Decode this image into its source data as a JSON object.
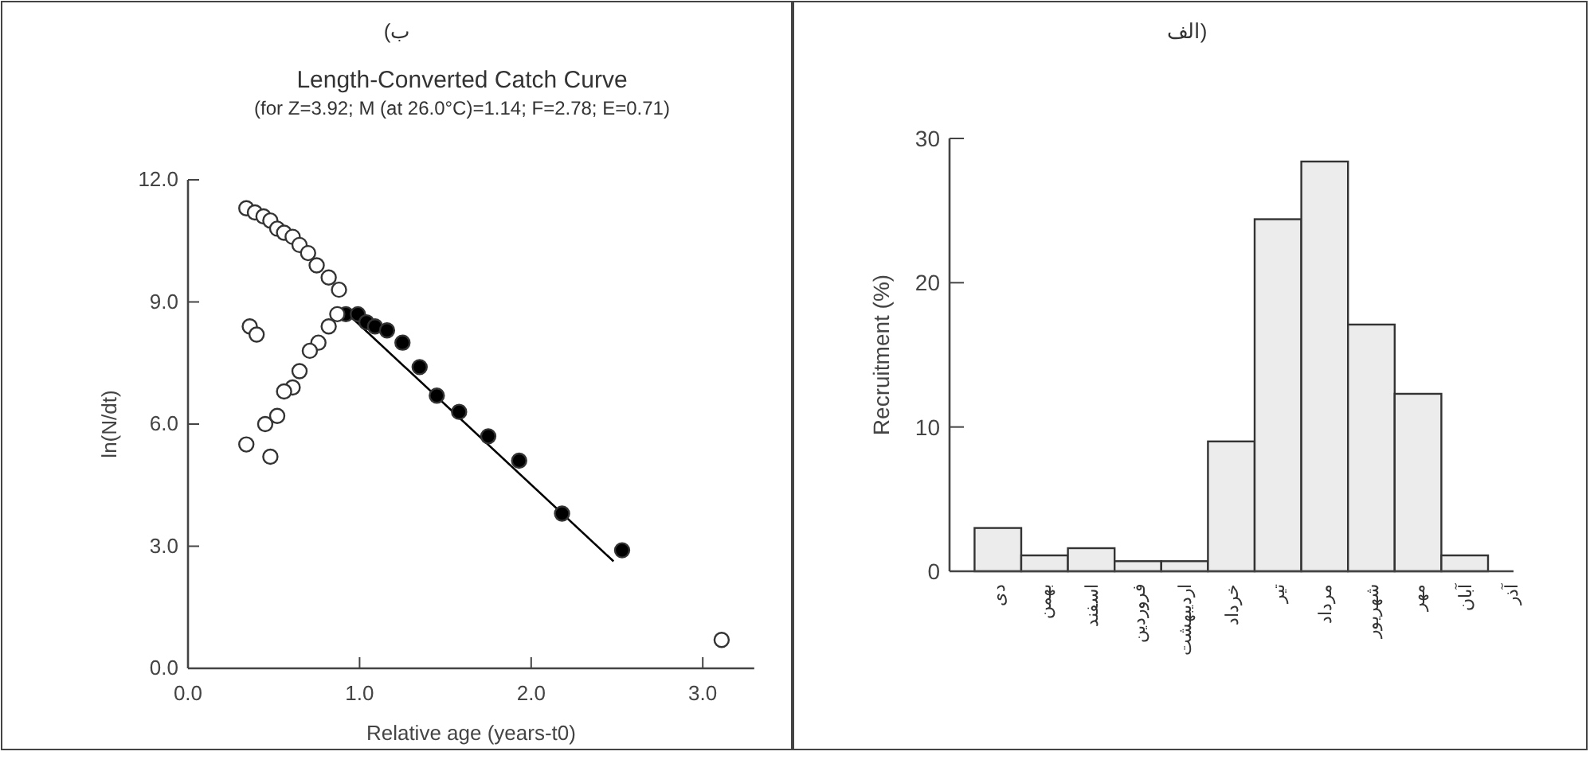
{
  "chart_data": [
    {
      "type": "scatter",
      "title": "Length-Converted Catch Curve",
      "subtitle": "(for Z=3.92; M (at 26.0°C)=1.14; F=2.78; E=0.71)",
      "xlabel": "Relative age (years-t0)",
      "ylabel": "ln(N/dt)",
      "annotations": [
        "ب)"
      ],
      "xlim": [
        0,
        3.3
      ],
      "ylim": [
        0,
        12
      ],
      "xticks": [
        {
          "value": 0,
          "label": "0.0"
        },
        {
          "value": 1,
          "label": "1.0"
        },
        {
          "value": 2,
          "label": "2.0"
        },
        {
          "value": 3,
          "label": "3.0"
        }
      ],
      "yticks": [
        {
          "value": 0,
          "label": "0.0"
        },
        {
          "value": 3,
          "label": "3.0"
        },
        {
          "value": 6,
          "label": "6.0"
        },
        {
          "value": 9,
          "label": "9.0"
        },
        {
          "value": 12,
          "label": "12.0"
        }
      ],
      "grid": false,
      "marker": "circle",
      "series": [
        {
          "color": "#ffffff",
          "x": [
            0.34,
            0.39,
            0.44,
            0.48,
            0.52,
            0.56,
            0.61,
            0.65,
            0.7,
            0.75,
            0.82,
            0.88,
            0.87,
            0.82,
            0.76,
            0.71,
            0.65,
            0.61,
            0.56,
            0.52,
            0.45,
            0.34,
            0.48,
            0.36,
            0.4,
            3.11
          ],
          "values": [
            11.3,
            11.2,
            11.1,
            11.0,
            10.8,
            10.7,
            10.6,
            10.4,
            10.2,
            9.9,
            9.6,
            9.3,
            8.7,
            8.4,
            8.0,
            7.8,
            7.3,
            6.9,
            6.8,
            6.2,
            6.0,
            5.5,
            5.2,
            8.4,
            8.2,
            0.7
          ]
        },
        {
          "color": "#000000",
          "x": [
            0.92,
            0.99,
            1.04,
            1.09,
            1.16,
            1.25,
            1.35,
            1.45,
            1.58,
            1.75,
            1.93,
            2.18,
            2.53
          ],
          "values": [
            8.7,
            8.7,
            8.5,
            8.4,
            8.3,
            8.0,
            7.4,
            6.7,
            6.3,
            5.7,
            5.1,
            3.8,
            2.9
          ]
        },
        {
          "type": "line",
          "color": "#000000",
          "line_style": "solid",
          "marker": "none",
          "x": [
            0.92,
            2.48
          ],
          "values": [
            8.75,
            2.63
          ]
        }
      ]
    },
    {
      "type": "bar",
      "ylabel": "Recruitment (%)",
      "annotations": [
        "الف)"
      ],
      "categories": [
        "دی",
        "بهمن",
        "اسفند",
        "فروردین",
        "اردیبهشت",
        "خرداد",
        "تیر",
        "مرداد",
        "شهریور",
        "مهر",
        "آبان",
        "آذر"
      ],
      "values": [
        3.0,
        1.1,
        1.6,
        0.7,
        0.7,
        9.0,
        24.4,
        28.4,
        17.1,
        12.3,
        1.1,
        0
      ],
      "color": "#ececec",
      "ylim": [
        0,
        30
      ],
      "yticks": [
        0,
        10,
        20,
        30
      ],
      "grid": false
    }
  ]
}
